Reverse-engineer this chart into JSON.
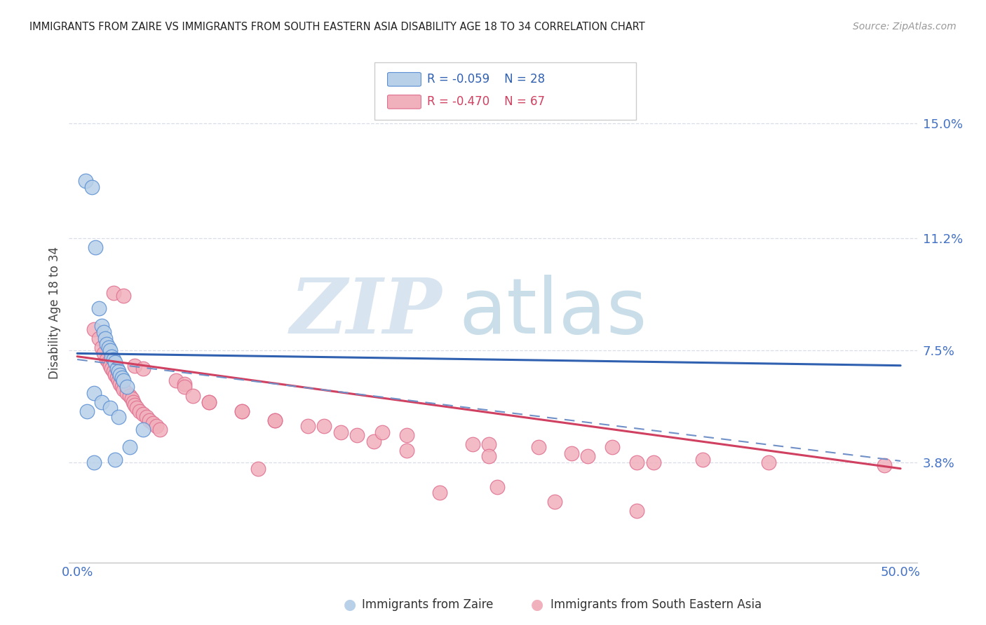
{
  "title": "IMMIGRANTS FROM ZAIRE VS IMMIGRANTS FROM SOUTH EASTERN ASIA DISABILITY AGE 18 TO 34 CORRELATION CHART",
  "source": "Source: ZipAtlas.com",
  "ylabel": "Disability Age 18 to 34",
  "y_tick_labels": [
    "3.8%",
    "7.5%",
    "11.2%",
    "15.0%"
  ],
  "y_tick_values": [
    3.8,
    7.5,
    11.2,
    15.0
  ],
  "xlim": [
    -0.5,
    51.0
  ],
  "ylim": [
    0.5,
    17.0
  ],
  "x_ticks": [
    0,
    50
  ],
  "x_tick_labels": [
    "0.0%",
    "50.0%"
  ],
  "legend_r1": "R = -0.059",
  "legend_n1": "N = 28",
  "legend_r2": "R = -0.470",
  "legend_n2": "N = 67",
  "color_blue_fill": "#b8d0e8",
  "color_blue_edge": "#5b8fd4",
  "color_pink_fill": "#f0b0bc",
  "color_pink_edge": "#e07090",
  "color_blue_line": "#3060b0",
  "color_pink_line": "#d04060",
  "color_blue_dash": "#7090c8",
  "color_axis_label": "#4472c4",
  "color_grid": "#d8dde8",
  "zaire_x": [
    0.5,
    0.9,
    1.1,
    1.3,
    1.5,
    1.6,
    1.7,
    1.8,
    1.9,
    2.0,
    2.1,
    2.2,
    2.3,
    2.4,
    2.5,
    2.6,
    2.7,
    2.8,
    3.0,
    1.0,
    1.5,
    2.0,
    2.5,
    4.0,
    3.2,
    2.3,
    1.0,
    0.6
  ],
  "zaire_y": [
    13.1,
    12.9,
    10.9,
    8.9,
    8.3,
    8.1,
    7.9,
    7.7,
    7.6,
    7.5,
    7.3,
    7.2,
    7.1,
    6.9,
    6.8,
    6.7,
    6.6,
    6.5,
    6.3,
    6.1,
    5.8,
    5.6,
    5.3,
    4.9,
    4.3,
    3.9,
    3.8,
    5.5
  ],
  "sea_x": [
    1.0,
    1.3,
    1.5,
    1.6,
    1.8,
    1.9,
    2.0,
    2.1,
    2.2,
    2.3,
    2.4,
    2.5,
    2.6,
    2.7,
    2.8,
    3.0,
    3.2,
    3.3,
    3.4,
    3.5,
    3.6,
    3.8,
    4.0,
    4.2,
    4.4,
    4.6,
    4.8,
    5.0,
    2.2,
    2.8,
    3.5,
    6.0,
    6.5,
    8.0,
    10.0,
    12.0,
    15.0,
    20.0,
    25.0,
    30.0,
    4.0,
    6.5,
    7.0,
    8.0,
    10.0,
    12.0,
    14.0,
    16.0,
    18.0,
    24.0,
    28.0,
    31.0,
    35.0,
    42.0,
    49.0,
    22.0,
    29.0,
    34.0,
    25.0,
    34.0,
    20.0,
    25.5,
    18.5,
    17.0,
    32.5,
    38.0,
    11.0
  ],
  "sea_y": [
    8.2,
    7.9,
    7.6,
    7.4,
    7.2,
    7.1,
    7.0,
    6.9,
    6.8,
    6.7,
    6.6,
    6.5,
    6.4,
    6.3,
    6.2,
    6.1,
    6.0,
    5.9,
    5.8,
    5.7,
    5.6,
    5.5,
    5.4,
    5.3,
    5.2,
    5.1,
    5.0,
    4.9,
    9.4,
    9.3,
    7.0,
    6.5,
    6.4,
    5.8,
    5.5,
    5.2,
    5.0,
    4.7,
    4.4,
    4.1,
    6.9,
    6.3,
    6.0,
    5.8,
    5.5,
    5.2,
    5.0,
    4.8,
    4.5,
    4.4,
    4.3,
    4.0,
    3.8,
    3.8,
    3.7,
    2.8,
    2.5,
    2.2,
    4.0,
    3.8,
    4.2,
    3.0,
    4.8,
    4.7,
    4.3,
    3.9,
    3.6
  ],
  "zaire_trendline": [
    0,
    50,
    7.4,
    7.0
  ],
  "sea_trendline": [
    0,
    50,
    7.3,
    3.6
  ],
  "dash_trendline": [
    0,
    50,
    7.2,
    3.85
  ]
}
